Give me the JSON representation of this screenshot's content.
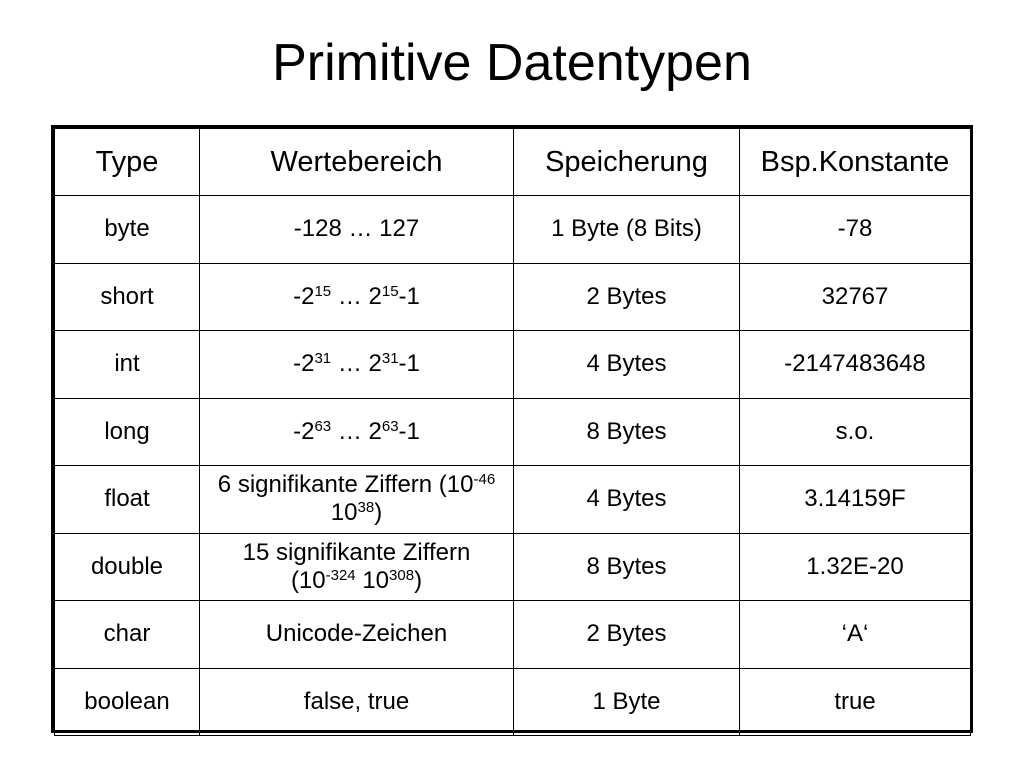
{
  "slide": {
    "title": "Primitive Datentypen"
  },
  "table": {
    "headers": [
      "Type",
      "Wertebereich",
      "Speicherung",
      "Bsp.Konstante"
    ],
    "rows": [
      {
        "type": "byte",
        "range": {
          "kind": "plain",
          "text": "-128 … 127"
        },
        "storage": "1 Byte (8 Bits)",
        "example": "-78"
      },
      {
        "type": "short",
        "range": {
          "kind": "power",
          "base": "2",
          "exp": "15",
          "sep": "…",
          "suffix": "-1"
        },
        "storage": "2 Bytes",
        "example": "32767"
      },
      {
        "type": "int",
        "range": {
          "kind": "power",
          "base": "2",
          "exp": "31",
          "sep": "…",
          "suffix": "-1"
        },
        "storage": "4 Bytes",
        "example": "-2147483648"
      },
      {
        "type": "long",
        "range": {
          "kind": "power",
          "base": "2",
          "exp": "63",
          "sep": "…",
          "suffix": "-1"
        },
        "storage": "8 Bytes",
        "example": "s.o."
      },
      {
        "type": "float",
        "range": {
          "kind": "sci",
          "lead": "6 signifikante Ziffern (10",
          "exp1": "-46",
          "mid": " 10",
          "exp2": "38",
          "tail": ")"
        },
        "storage": "4 Bytes",
        "example": "3.14159F"
      },
      {
        "type": "double",
        "range": {
          "kind": "sci",
          "lead": "15 signifikante Ziffern",
          "lead2": "(10",
          "exp1": "-324",
          "mid": " 10",
          "exp2": "308",
          "tail": ")"
        },
        "storage": "8 Bytes",
        "example": "1.32E-20"
      },
      {
        "type": "char",
        "range": {
          "kind": "plain",
          "text": "Unicode-Zeichen"
        },
        "storage": "2 Bytes",
        "example": "‘A‘"
      },
      {
        "type": "boolean",
        "range": {
          "kind": "plain",
          "text": "false, true"
        },
        "storage": "1 Byte",
        "example": "true"
      }
    ]
  }
}
